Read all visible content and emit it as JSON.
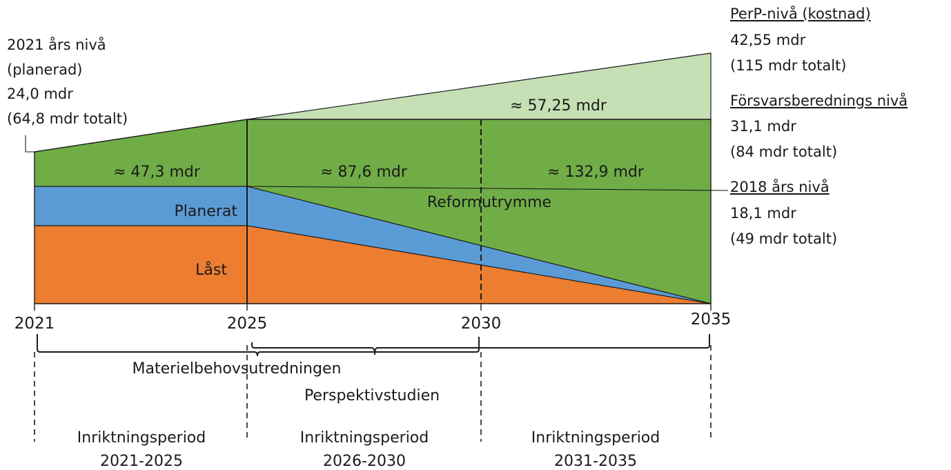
{
  "colors": {
    "reform": "#70ad47",
    "perp": "#c5e0b4",
    "planerat": "#5b9bd5",
    "last": "#ed7d31",
    "line": "#1a1a1a"
  },
  "years": [
    "2021",
    "2025",
    "2030",
    "2035"
  ],
  "left_level": {
    "lines": [
      "2021 års nivå",
      "(planerad)",
      "24,0 mdr",
      "(64,8 mdr totalt)"
    ]
  },
  "right_levels": {
    "perp": {
      "title": "PerP-nivå (kostnad)",
      "value": "42,55 mdr",
      "total": "(115 mdr totalt)"
    },
    "forsvar": {
      "title": "Försvarsberednings nivå",
      "value": "31,1 mdr",
      "total": "(84 mdr totalt)"
    },
    "y2018": {
      "title": "2018 års nivå",
      "value": "18,1 mdr",
      "total": "(49 mdr totalt)"
    }
  },
  "area_values": {
    "first": "≈ 47,3 mdr",
    "second": "≈ 87,6 mdr",
    "third": "≈ 132,9 mdr",
    "perp": "≈ 57,25 mdr"
  },
  "area_labels": {
    "planerat": "Planerat",
    "last": "Låst",
    "reform": "Reformutrymme"
  },
  "studies": {
    "materiel": "Materielbehovsutredningen",
    "perspektiv": "Perspektivstudien"
  },
  "periods": [
    {
      "name": "Inriktningsperiod",
      "years": "2021-2025"
    },
    {
      "name": "Inriktningsperiod",
      "years": "2026-2030"
    },
    {
      "name": "Inriktningsperiod",
      "years": "2031-2035"
    }
  ]
}
